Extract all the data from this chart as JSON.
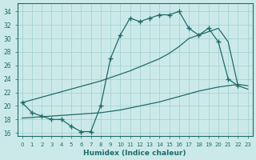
{
  "bg_color": "#cce9e9",
  "grid_color": "#9fcfcf",
  "line_color": "#1e6b6b",
  "xlabel": "Humidex (Indice chaleur)",
  "xlim": [
    -0.5,
    23.5
  ],
  "ylim": [
    15.5,
    35.2
  ],
  "xtick_labels": [
    "0",
    "1",
    "2",
    "3",
    "4",
    "5",
    "6",
    "7",
    "8",
    "9",
    "10",
    "11",
    "12",
    "13",
    "14",
    "15",
    "16",
    "17",
    "18",
    "19",
    "20",
    "21",
    "22",
    "23"
  ],
  "ytick_vals": [
    16,
    18,
    20,
    22,
    24,
    26,
    28,
    30,
    32,
    34
  ],
  "line1_x": [
    0,
    1,
    2,
    3,
    4,
    5,
    6,
    7,
    8,
    9,
    10,
    11,
    12,
    13,
    14,
    15,
    16,
    17,
    18,
    19,
    20,
    21,
    22
  ],
  "line1_y": [
    20.5,
    19.0,
    18.5,
    18.0,
    18.0,
    17.0,
    16.2,
    16.2,
    20.0,
    27.0,
    30.5,
    33.0,
    32.5,
    33.0,
    33.5,
    33.5,
    34.0,
    31.5,
    30.5,
    31.5,
    29.5,
    24.0,
    23.0
  ],
  "line2_x": [
    0,
    1,
    2,
    3,
    4,
    5,
    6,
    7,
    8,
    9,
    10,
    11,
    12,
    13,
    14,
    15,
    16,
    17,
    18,
    19,
    20,
    21,
    22,
    23
  ],
  "line2_y": [
    20.5,
    20.9,
    21.3,
    21.7,
    22.1,
    22.5,
    22.9,
    23.3,
    23.7,
    24.2,
    24.7,
    25.2,
    25.8,
    26.4,
    27.0,
    27.8,
    28.8,
    30.0,
    30.5,
    31.0,
    31.5,
    29.5,
    23.0,
    22.5
  ],
  "line3_x": [
    0,
    1,
    2,
    3,
    4,
    5,
    6,
    7,
    8,
    9,
    10,
    11,
    12,
    13,
    14,
    15,
    16,
    17,
    18,
    19,
    20,
    21,
    22,
    23
  ],
  "line3_y": [
    18.2,
    18.3,
    18.4,
    18.5,
    18.6,
    18.7,
    18.8,
    18.9,
    19.0,
    19.2,
    19.4,
    19.7,
    20.0,
    20.3,
    20.6,
    21.0,
    21.4,
    21.8,
    22.2,
    22.5,
    22.8,
    23.0,
    23.2,
    23.0
  ]
}
